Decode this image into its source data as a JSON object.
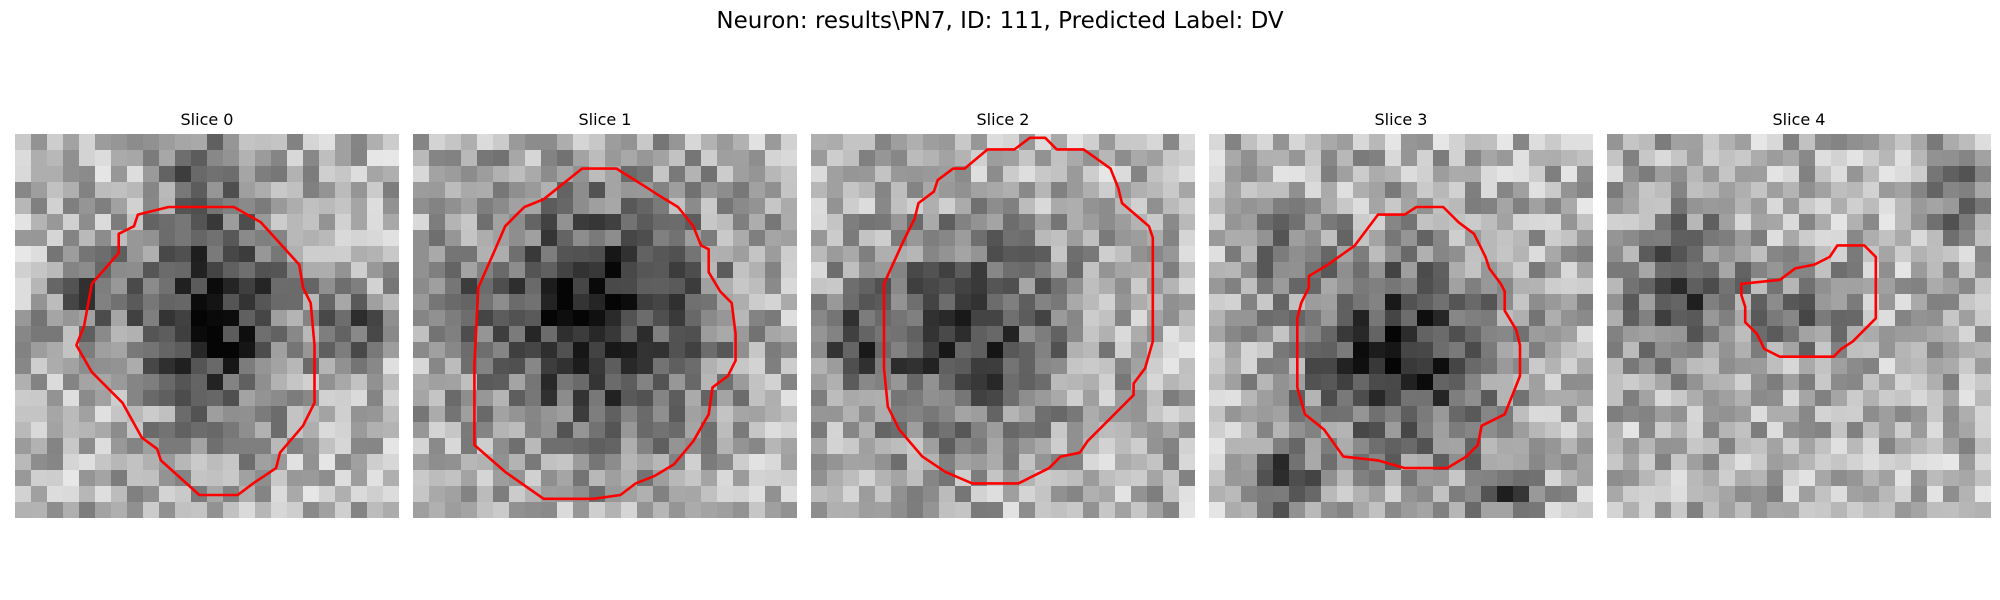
{
  "figure": {
    "suptitle": "Neuron: results\\PN7, ID: 111, Predicted Label: DV",
    "contour_color": "#ff0000",
    "panels": [
      {
        "title": "Slice 0",
        "center": [
          0.5,
          0.48
        ],
        "radius": [
          0.29,
          0.35
        ],
        "blobs": [
          [
            0.52,
            0.48,
            0.22,
            0.3,
            0.78
          ],
          [
            0.2,
            0.42,
            0.12,
            0.1,
            0.45
          ],
          [
            0.88,
            0.5,
            0.1,
            0.1,
            0.5
          ],
          [
            0.48,
            0.12,
            0.1,
            0.14,
            0.35
          ]
        ],
        "contour": [
          [
            0.4,
            0.19
          ],
          [
            0.57,
            0.19
          ],
          [
            0.64,
            0.23
          ],
          [
            0.74,
            0.34
          ],
          [
            0.75,
            0.4
          ],
          [
            0.77,
            0.44
          ],
          [
            0.78,
            0.55
          ],
          [
            0.78,
            0.7
          ],
          [
            0.75,
            0.76
          ],
          [
            0.69,
            0.83
          ],
          [
            0.68,
            0.87
          ],
          [
            0.62,
            0.91
          ],
          [
            0.58,
            0.94
          ],
          [
            0.48,
            0.94
          ],
          [
            0.38,
            0.85
          ],
          [
            0.37,
            0.82
          ],
          [
            0.33,
            0.79
          ],
          [
            0.28,
            0.7
          ],
          [
            0.2,
            0.62
          ],
          [
            0.16,
            0.55
          ],
          [
            0.18,
            0.5
          ],
          [
            0.2,
            0.39
          ],
          [
            0.27,
            0.31
          ],
          [
            0.27,
            0.26
          ],
          [
            0.31,
            0.24
          ],
          [
            0.32,
            0.21
          ]
        ]
      },
      {
        "title": "Slice 1",
        "center": [
          0.5,
          0.46
        ],
        "radius": [
          0.36,
          0.38
        ],
        "blobs": [
          [
            0.48,
            0.48,
            0.34,
            0.36,
            0.75
          ],
          [
            0.12,
            0.45,
            0.1,
            0.14,
            0.35
          ]
        ],
        "contour": [
          [
            0.34,
            0.17
          ],
          [
            0.44,
            0.09
          ],
          [
            0.53,
            0.09
          ],
          [
            0.61,
            0.14
          ],
          [
            0.64,
            0.16
          ],
          [
            0.69,
            0.19
          ],
          [
            0.73,
            0.24
          ],
          [
            0.75,
            0.29
          ],
          [
            0.77,
            0.3
          ],
          [
            0.77,
            0.36
          ],
          [
            0.8,
            0.41
          ],
          [
            0.83,
            0.44
          ],
          [
            0.84,
            0.52
          ],
          [
            0.84,
            0.59
          ],
          [
            0.82,
            0.63
          ],
          [
            0.78,
            0.66
          ],
          [
            0.77,
            0.73
          ],
          [
            0.73,
            0.8
          ],
          [
            0.68,
            0.86
          ],
          [
            0.63,
            0.89
          ],
          [
            0.58,
            0.91
          ],
          [
            0.54,
            0.94
          ],
          [
            0.47,
            0.95
          ],
          [
            0.34,
            0.95
          ],
          [
            0.24,
            0.88
          ],
          [
            0.16,
            0.81
          ],
          [
            0.16,
            0.74
          ],
          [
            0.16,
            0.6
          ],
          [
            0.17,
            0.4
          ],
          [
            0.21,
            0.31
          ],
          [
            0.24,
            0.24
          ],
          [
            0.27,
            0.21
          ],
          [
            0.29,
            0.19
          ]
        ]
      },
      {
        "title": "Slice 2",
        "center": [
          0.48,
          0.45
        ],
        "radius": [
          0.34,
          0.38
        ],
        "blobs": [
          [
            0.4,
            0.52,
            0.3,
            0.3,
            0.62
          ],
          [
            0.12,
            0.55,
            0.12,
            0.14,
            0.4
          ]
        ],
        "contour": [
          [
            0.4,
            0.09
          ],
          [
            0.46,
            0.04
          ],
          [
            0.53,
            0.04
          ],
          [
            0.57,
            0.01
          ],
          [
            0.61,
            0.01
          ],
          [
            0.64,
            0.04
          ],
          [
            0.71,
            0.04
          ],
          [
            0.78,
            0.09
          ],
          [
            0.8,
            0.14
          ],
          [
            0.81,
            0.18
          ],
          [
            0.88,
            0.24
          ],
          [
            0.89,
            0.27
          ],
          [
            0.89,
            0.54
          ],
          [
            0.87,
            0.61
          ],
          [
            0.84,
            0.65
          ],
          [
            0.84,
            0.68
          ],
          [
            0.78,
            0.74
          ],
          [
            0.72,
            0.8
          ],
          [
            0.7,
            0.83
          ],
          [
            0.65,
            0.84
          ],
          [
            0.62,
            0.87
          ],
          [
            0.54,
            0.91
          ],
          [
            0.42,
            0.91
          ],
          [
            0.35,
            0.88
          ],
          [
            0.29,
            0.84
          ],
          [
            0.23,
            0.77
          ],
          [
            0.2,
            0.71
          ],
          [
            0.19,
            0.61
          ],
          [
            0.19,
            0.39
          ],
          [
            0.24,
            0.28
          ],
          [
            0.27,
            0.22
          ],
          [
            0.28,
            0.18
          ],
          [
            0.32,
            0.15
          ],
          [
            0.33,
            0.12
          ],
          [
            0.37,
            0.09
          ]
        ]
      },
      {
        "title": "Slice 3",
        "center": [
          0.52,
          0.55
        ],
        "radius": [
          0.29,
          0.3
        ],
        "blobs": [
          [
            0.5,
            0.57,
            0.28,
            0.28,
            0.72
          ],
          [
            0.2,
            0.9,
            0.1,
            0.1,
            0.55
          ],
          [
            0.76,
            0.93,
            0.1,
            0.08,
            0.55
          ],
          [
            0.18,
            0.3,
            0.12,
            0.12,
            0.3
          ]
        ],
        "contour": [
          [
            0.38,
            0.29
          ],
          [
            0.44,
            0.21
          ],
          [
            0.51,
            0.21
          ],
          [
            0.54,
            0.19
          ],
          [
            0.61,
            0.19
          ],
          [
            0.65,
            0.23
          ],
          [
            0.69,
            0.26
          ],
          [
            0.72,
            0.32
          ],
          [
            0.73,
            0.35
          ],
          [
            0.76,
            0.39
          ],
          [
            0.77,
            0.41
          ],
          [
            0.77,
            0.46
          ],
          [
            0.8,
            0.51
          ],
          [
            0.81,
            0.55
          ],
          [
            0.81,
            0.63
          ],
          [
            0.79,
            0.68
          ],
          [
            0.77,
            0.73
          ],
          [
            0.71,
            0.76
          ],
          [
            0.7,
            0.81
          ],
          [
            0.67,
            0.84
          ],
          [
            0.62,
            0.87
          ],
          [
            0.51,
            0.87
          ],
          [
            0.44,
            0.85
          ],
          [
            0.35,
            0.84
          ],
          [
            0.3,
            0.77
          ],
          [
            0.25,
            0.73
          ],
          [
            0.23,
            0.66
          ],
          [
            0.23,
            0.59
          ],
          [
            0.23,
            0.48
          ],
          [
            0.24,
            0.44
          ],
          [
            0.26,
            0.4
          ],
          [
            0.26,
            0.37
          ],
          [
            0.31,
            0.34
          ]
        ]
      },
      {
        "title": "Slice 4",
        "center": [
          0.5,
          0.48
        ],
        "radius": [
          0.3,
          0.3
        ],
        "blobs": [
          [
            0.2,
            0.4,
            0.16,
            0.22,
            0.55
          ],
          [
            0.52,
            0.46,
            0.14,
            0.12,
            0.4
          ],
          [
            0.9,
            0.15,
            0.1,
            0.12,
            0.45
          ]
        ],
        "contour": [
          [
            0.35,
            0.39
          ],
          [
            0.45,
            0.38
          ],
          [
            0.49,
            0.35
          ],
          [
            0.54,
            0.34
          ],
          [
            0.58,
            0.32
          ],
          [
            0.6,
            0.29
          ],
          [
            0.67,
            0.29
          ],
          [
            0.7,
            0.32
          ],
          [
            0.7,
            0.48
          ],
          [
            0.64,
            0.54
          ],
          [
            0.61,
            0.56
          ],
          [
            0.59,
            0.58
          ],
          [
            0.53,
            0.58
          ],
          [
            0.45,
            0.58
          ],
          [
            0.41,
            0.56
          ],
          [
            0.39,
            0.52
          ],
          [
            0.36,
            0.49
          ],
          [
            0.36,
            0.45
          ],
          [
            0.35,
            0.42
          ]
        ]
      }
    ]
  }
}
